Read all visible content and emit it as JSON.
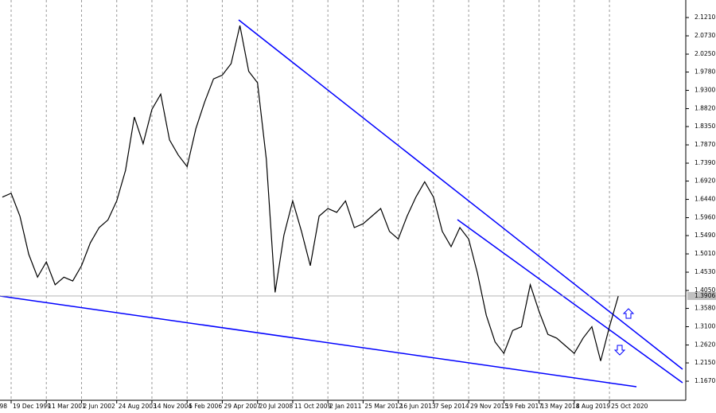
{
  "chart_data": {
    "type": "line",
    "categories": [
      "98",
      null,
      null,
      null,
      "19 Dec 1999",
      null,
      null,
      null,
      "11 Mar 2001",
      null,
      null,
      null,
      "2 Jun 2002",
      null,
      null,
      null,
      "24 Aug 2003",
      null,
      null,
      null,
      "14 Nov 2004",
      null,
      null,
      null,
      "5 Feb 2006",
      null,
      null,
      null,
      "29 Apr 2007",
      null,
      null,
      null,
      "20 Jul 2008",
      null,
      null,
      null,
      "11 Oct 2009",
      null,
      null,
      null,
      "2 Jan 2011",
      null,
      null,
      null,
      "25 Mar 2012",
      null,
      null,
      null,
      "16 Jun 2013",
      null,
      null,
      null,
      "7 Sep 2014",
      null,
      null,
      null,
      "29 Nov 2015",
      null,
      null,
      null,
      "19 Feb 2017",
      null,
      null,
      null,
      "13 May 2018",
      null,
      null,
      null,
      "4 Aug 2019",
      null,
      null,
      null,
      "25 Oct 2020",
      null,
      null,
      null,
      null,
      null,
      null
    ],
    "values": [
      null,
      null,
      null,
      1.65,
      1.66,
      1.6,
      1.5,
      1.44,
      1.48,
      1.42,
      1.44,
      1.43,
      1.47,
      1.53,
      1.57,
      1.59,
      1.64,
      1.72,
      1.86,
      1.79,
      1.88,
      1.92,
      1.8,
      1.76,
      1.73,
      1.83,
      1.9,
      1.96,
      1.97,
      2.0,
      2.1,
      1.98,
      1.95,
      1.75,
      1.4,
      1.55,
      1.64,
      1.56,
      1.47,
      1.6,
      1.62,
      1.61,
      1.64,
      1.57,
      1.58,
      1.6,
      1.62,
      1.56,
      1.54,
      1.6,
      1.65,
      1.69,
      1.65,
      1.56,
      1.52,
      1.57,
      1.54,
      1.45,
      1.34,
      1.27,
      1.24,
      1.3,
      1.31,
      1.42,
      1.35,
      1.29,
      1.28,
      1.26,
      1.24,
      1.28,
      1.31,
      1.22,
      1.31,
      1.39,
      null,
      null,
      null,
      null,
      null
    ],
    "color": "#000000",
    "ylim": [
      1.117,
      2.167
    ],
    "yticks": [
      {
        "value": 2.121,
        "label": "2.1210"
      },
      {
        "value": 2.073,
        "label": "2.0730"
      },
      {
        "value": 2.025,
        "label": "2.0250"
      },
      {
        "value": 1.978,
        "label": "1.9780"
      },
      {
        "value": 1.93,
        "label": "1.9300"
      },
      {
        "value": 1.882,
        "label": "1.8820"
      },
      {
        "value": 1.835,
        "label": "1.8350"
      },
      {
        "value": 1.787,
        "label": "1.7870"
      },
      {
        "value": 1.739,
        "label": "1.7390"
      },
      {
        "value": 1.692,
        "label": "1.6920"
      },
      {
        "value": 1.644,
        "label": "1.6440"
      },
      {
        "value": 1.596,
        "label": "1.5960"
      },
      {
        "value": 1.549,
        "label": "1.5490"
      },
      {
        "value": 1.501,
        "label": "1.5010"
      },
      {
        "value": 1.453,
        "label": "1.4530"
      },
      {
        "value": 1.405,
        "label": "1.4050"
      },
      {
        "value": 1.358,
        "label": "1.3580"
      },
      {
        "value": 1.31,
        "label": "1.3100"
      },
      {
        "value": 1.262,
        "label": "1.2620"
      },
      {
        "value": 1.215,
        "label": "1.2150"
      },
      {
        "value": 1.167,
        "label": "1.1670"
      }
    ],
    "current_price": 1.3906,
    "grid": "vertical"
  }
}
